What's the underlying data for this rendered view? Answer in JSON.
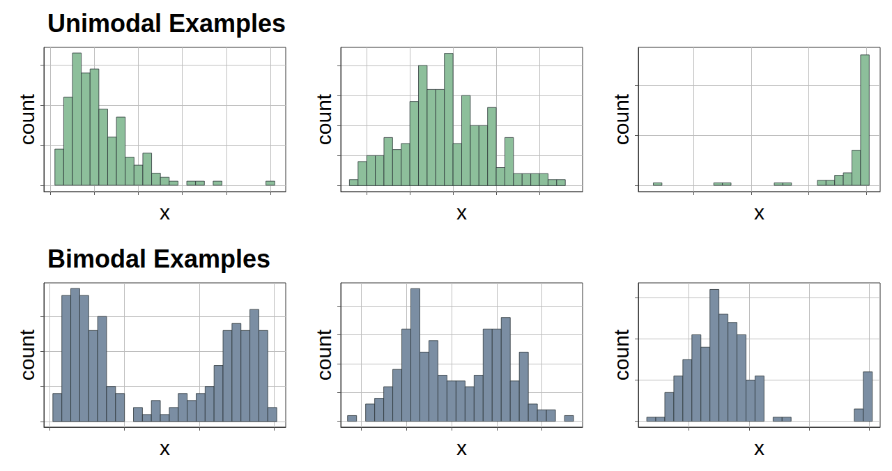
{
  "chart_data": [
    {
      "type": "histogram",
      "title": "Unimodal Examples",
      "x_label": "x",
      "y_label": "count",
      "bins": [
        0.2,
        0.6,
        1.0,
        1.4,
        1.8,
        2.2,
        2.6,
        3.0,
        3.4,
        3.8,
        4.2,
        4.6,
        5.0,
        5.4,
        5.8,
        6.2,
        6.6,
        7.0,
        7.4,
        7.8,
        8.2,
        8.6,
        9.0,
        9.4,
        9.8,
        10.2
      ],
      "counts": [
        9,
        22,
        33,
        28,
        29,
        19,
        12,
        17,
        7,
        5,
        8,
        3,
        2,
        1,
        0,
        1,
        1,
        0,
        1,
        0,
        0,
        0,
        0,
        0,
        1
      ],
      "color": "#8dbf9b",
      "xlim": [
        -0.3,
        10.7
      ],
      "xticks": [
        0,
        2,
        4,
        6,
        8,
        10
      ],
      "ylim": [
        -1.6,
        34.4
      ],
      "yticks": [
        0,
        10,
        20,
        30
      ],
      "grid": true,
      "tick_labels": false
    },
    {
      "type": "histogram",
      "x_label": "x",
      "y_label": "count",
      "bins": [
        -4.8,
        -4.4,
        -4,
        -3.6,
        -3.2,
        -2.8,
        -2.4,
        -2,
        -1.6,
        -1.2,
        -0.8,
        -0.4,
        0,
        0.4,
        0.8,
        1.2,
        1.6,
        2,
        2.4,
        2.8,
        3.2,
        3.6,
        4,
        4.4,
        4.8,
        5.2
      ],
      "counts": [
        1,
        4,
        5,
        5,
        8,
        6,
        7,
        14,
        20,
        16,
        16,
        22,
        7,
        15,
        10,
        10,
        13,
        3,
        8,
        2,
        2,
        2,
        2,
        1,
        1
      ],
      "color": "#8dbf9b",
      "xlim": [
        -5.2,
        6
      ],
      "xticks": [
        -4,
        -2,
        0,
        2,
        4
      ],
      "ylim": [
        -1,
        23
      ],
      "yticks": [
        0,
        5,
        10,
        15,
        20
      ],
      "grid": true,
      "tick_labels": false
    },
    {
      "type": "histogram",
      "x_label": "x",
      "y_label": "count",
      "bins": [
        -18.5,
        -17.75,
        -17,
        -16.25,
        -15.5,
        -14.75,
        -14,
        -13.25,
        -12.5,
        -11.75,
        -11,
        -10.25,
        -9.5,
        -8.75,
        -8,
        -7.25,
        -6.5,
        -5.75,
        -5,
        -4.25,
        -3.5,
        -2.75,
        -2,
        -1.25,
        -0.5,
        0.25
      ],
      "counts": [
        1,
        0,
        0,
        0,
        0,
        0,
        0,
        1,
        1,
        0,
        0,
        0,
        0,
        0,
        1,
        1,
        0,
        0,
        0,
        2,
        2,
        4,
        5,
        14,
        52
      ],
      "color": "#8dbf9b",
      "xlim": [
        -19.8,
        1.2
      ],
      "xticks": [
        -15,
        -10,
        -5,
        0
      ],
      "ylim": [
        -2.5,
        55
      ],
      "yticks": [
        0,
        20,
        40
      ],
      "grid": true,
      "tick_labels": false
    },
    {
      "type": "histogram",
      "title": "Bimodal Examples",
      "x_label": "x",
      "y_label": "count",
      "bins": [
        0.2,
        0.8,
        1.4,
        2,
        2.6,
        3.2,
        3.8,
        4.4,
        5,
        5.6,
        6.2,
        6.8,
        7.4,
        8,
        8.6,
        9.2,
        9.8,
        10.4,
        11,
        11.6,
        12.2,
        12.8,
        13.4,
        14,
        14.6,
        15.2
      ],
      "counts": [
        8,
        36,
        38,
        36,
        26,
        30,
        10,
        8,
        0,
        4,
        2,
        6,
        2,
        4,
        8,
        6,
        8,
        10,
        16,
        26,
        28,
        26,
        32,
        26,
        4
      ],
      "color": "#7b8ea3",
      "xlim": [
        -0.4,
        15.8
      ],
      "xticks": [
        0,
        5,
        10,
        15
      ],
      "ylim": [
        -1.6,
        39.6
      ],
      "yticks": [
        0,
        10,
        20,
        30
      ],
      "grid": true,
      "tick_labels": false
    },
    {
      "type": "histogram",
      "x_label": "x",
      "y_label": "count",
      "bins": [
        -4.6,
        -4.2,
        -3.8,
        -3.4,
        -3,
        -2.6,
        -2.2,
        -1.8,
        -1.4,
        -1,
        -0.6,
        -0.2,
        0.2,
        0.6,
        1,
        1.4,
        1.8,
        2.2,
        2.6,
        3,
        3.4,
        3.8,
        4.2,
        4.6,
        5,
        5.4
      ],
      "counts": [
        1,
        0,
        3,
        4,
        6,
        9,
        16,
        23,
        12,
        14,
        8,
        7,
        7,
        6,
        8,
        16,
        16,
        18,
        7,
        12,
        3,
        2,
        2,
        0,
        1
      ],
      "color": "#7b8ea3",
      "xlim": [
        -4.9,
        5.8
      ],
      "xticks": [
        -4,
        -2,
        0,
        2,
        4
      ],
      "ylim": [
        -1,
        24
      ],
      "yticks": [
        0,
        5,
        10,
        15,
        20
      ],
      "grid": true,
      "tick_labels": false
    },
    {
      "type": "histogram",
      "x_label": "x",
      "y_label": "count",
      "bins": [
        -18.5,
        -17.75,
        -17,
        -16.25,
        -15.5,
        -14.75,
        -14,
        -13.25,
        -12.5,
        -11.75,
        -11,
        -10.25,
        -9.5,
        -8.75,
        -8,
        -7.25,
        -6.5,
        -5.75,
        -5,
        -4.25,
        -3.5,
        -2.75,
        -2,
        -1.25,
        -0.5,
        0.25
      ],
      "counts": [
        1,
        1,
        7,
        11,
        15,
        21,
        18,
        32,
        26,
        24,
        21,
        10,
        11,
        0,
        1,
        1,
        0,
        0,
        0,
        0,
        0,
        0,
        0,
        3,
        12
      ],
      "color": "#7b8ea3",
      "xlim": [
        -19.2,
        0.9
      ],
      "xticks": [
        -15,
        -10,
        -5,
        0
      ],
      "ylim": [
        -1.4,
        33.6
      ],
      "yticks": [
        0,
        10,
        20,
        30
      ],
      "grid": true,
      "tick_labels": false
    }
  ]
}
